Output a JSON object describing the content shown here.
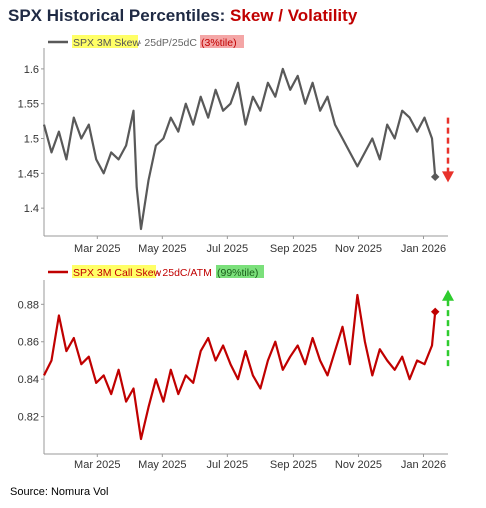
{
  "title": {
    "main": "SPX Historical Percentiles: ",
    "accent": "Skew / Volatility"
  },
  "source": "Source: Nomura Vol",
  "colors": {
    "accent": "#c00000",
    "series1": "#595959",
    "series2": "#c00000",
    "highlight_yellow": "#ffff66",
    "highlight_red": "#f4a6a6",
    "highlight_green": "#7be07b"
  },
  "chart_data": [
    {
      "type": "line",
      "xlabel": "",
      "ylabel": "",
      "x_range": [
        "2025-01-10",
        "2026-01-24"
      ],
      "x_ticks": [
        "2025-03-01",
        "2025-05-01",
        "2025-07-01",
        "2025-09-01",
        "2025-11-01",
        "2026-01-01"
      ],
      "x_tick_labels": [
        "Mar 2025",
        "May 2025",
        "Jul 2025",
        "Sep 2025",
        "Nov 2025",
        "Jan 2026"
      ],
      "ylim": [
        1.36,
        1.63
      ],
      "y_ticks": [
        1.4,
        1.45,
        1.5,
        1.55,
        1.6
      ],
      "y_tick_labels": [
        "1.4",
        "1.45",
        "1.5",
        "1.55",
        "1.6"
      ],
      "legend": {
        "name": "SPX 3M Skew",
        "detail": " - 25dP/25dC ",
        "badge": "(3%tile)",
        "position": "top-left"
      },
      "last_marker": {
        "x": "2026-01-12",
        "y": 1.445
      },
      "arrow": {
        "direction": "down",
        "style": "dashed",
        "color": "#e8322b"
      },
      "series": [
        {
          "name": "SPX 3M Skew",
          "x": [
            "2025-01-10",
            "2025-01-17",
            "2025-01-24",
            "2025-01-31",
            "2025-02-07",
            "2025-02-14",
            "2025-02-21",
            "2025-02-28",
            "2025-03-07",
            "2025-03-14",
            "2025-03-21",
            "2025-03-28",
            "2025-04-04",
            "2025-04-07",
            "2025-04-11",
            "2025-04-18",
            "2025-04-25",
            "2025-05-02",
            "2025-05-09",
            "2025-05-16",
            "2025-05-23",
            "2025-05-30",
            "2025-06-06",
            "2025-06-13",
            "2025-06-20",
            "2025-06-27",
            "2025-07-04",
            "2025-07-11",
            "2025-07-18",
            "2025-07-25",
            "2025-08-01",
            "2025-08-08",
            "2025-08-15",
            "2025-08-22",
            "2025-08-29",
            "2025-09-05",
            "2025-09-12",
            "2025-09-19",
            "2025-09-26",
            "2025-10-03",
            "2025-10-10",
            "2025-10-17",
            "2025-10-24",
            "2025-10-31",
            "2025-11-07",
            "2025-11-14",
            "2025-11-21",
            "2025-11-28",
            "2025-12-05",
            "2025-12-12",
            "2025-12-19",
            "2025-12-26",
            "2026-01-02",
            "2026-01-09",
            "2026-01-12"
          ],
          "y": [
            1.52,
            1.48,
            1.51,
            1.47,
            1.53,
            1.5,
            1.52,
            1.47,
            1.45,
            1.48,
            1.47,
            1.49,
            1.54,
            1.43,
            1.37,
            1.44,
            1.49,
            1.5,
            1.53,
            1.51,
            1.55,
            1.52,
            1.56,
            1.53,
            1.57,
            1.54,
            1.55,
            1.58,
            1.52,
            1.56,
            1.54,
            1.58,
            1.56,
            1.6,
            1.57,
            1.59,
            1.55,
            1.58,
            1.54,
            1.56,
            1.52,
            1.5,
            1.48,
            1.46,
            1.48,
            1.5,
            1.47,
            1.52,
            1.5,
            1.54,
            1.53,
            1.51,
            1.53,
            1.5,
            1.445
          ]
        }
      ]
    },
    {
      "type": "line",
      "xlabel": "",
      "ylabel": "",
      "x_range": [
        "2025-01-10",
        "2026-01-24"
      ],
      "x_ticks": [
        "2025-03-01",
        "2025-05-01",
        "2025-07-01",
        "2025-09-01",
        "2025-11-01",
        "2026-01-01"
      ],
      "x_tick_labels": [
        "Mar 2025",
        "May 2025",
        "Jul 2025",
        "Sep 2025",
        "Nov 2025",
        "Jan 2026"
      ],
      "ylim": [
        0.8,
        0.893
      ],
      "y_ticks": [
        0.82,
        0.84,
        0.86,
        0.88
      ],
      "y_tick_labels": [
        "0.82",
        "0.84",
        "0.86",
        "0.88"
      ],
      "legend": {
        "name": "SPX 3M Call Skew",
        "detail": " - 25dC/ATM ",
        "badge": "(99%tile)",
        "position": "top-left"
      },
      "last_marker": {
        "x": "2026-01-12",
        "y": 0.876
      },
      "arrow": {
        "direction": "up",
        "style": "dashed",
        "color": "#2ecc2e"
      },
      "series": [
        {
          "name": "SPX 3M Call Skew",
          "x": [
            "2025-01-10",
            "2025-01-17",
            "2025-01-24",
            "2025-01-31",
            "2025-02-07",
            "2025-02-14",
            "2025-02-21",
            "2025-02-28",
            "2025-03-07",
            "2025-03-14",
            "2025-03-21",
            "2025-03-28",
            "2025-04-04",
            "2025-04-11",
            "2025-04-18",
            "2025-04-25",
            "2025-05-02",
            "2025-05-09",
            "2025-05-16",
            "2025-05-23",
            "2025-05-30",
            "2025-06-06",
            "2025-06-13",
            "2025-06-20",
            "2025-06-27",
            "2025-07-04",
            "2025-07-11",
            "2025-07-18",
            "2025-07-25",
            "2025-08-01",
            "2025-08-08",
            "2025-08-15",
            "2025-08-22",
            "2025-08-29",
            "2025-09-05",
            "2025-09-12",
            "2025-09-19",
            "2025-09-26",
            "2025-10-03",
            "2025-10-10",
            "2025-10-17",
            "2025-10-24",
            "2025-10-31",
            "2025-11-07",
            "2025-11-14",
            "2025-11-21",
            "2025-11-28",
            "2025-12-05",
            "2025-12-12",
            "2025-12-19",
            "2025-12-26",
            "2026-01-02",
            "2026-01-09",
            "2026-01-12"
          ],
          "y": [
            0.842,
            0.85,
            0.874,
            0.855,
            0.862,
            0.848,
            0.852,
            0.838,
            0.842,
            0.832,
            0.845,
            0.828,
            0.835,
            0.808,
            0.825,
            0.84,
            0.828,
            0.845,
            0.832,
            0.842,
            0.838,
            0.855,
            0.862,
            0.85,
            0.858,
            0.848,
            0.84,
            0.855,
            0.842,
            0.835,
            0.85,
            0.86,
            0.845,
            0.852,
            0.858,
            0.848,
            0.862,
            0.85,
            0.842,
            0.855,
            0.868,
            0.848,
            0.885,
            0.86,
            0.842,
            0.856,
            0.85,
            0.845,
            0.852,
            0.84,
            0.85,
            0.848,
            0.858,
            0.876
          ]
        }
      ]
    }
  ]
}
